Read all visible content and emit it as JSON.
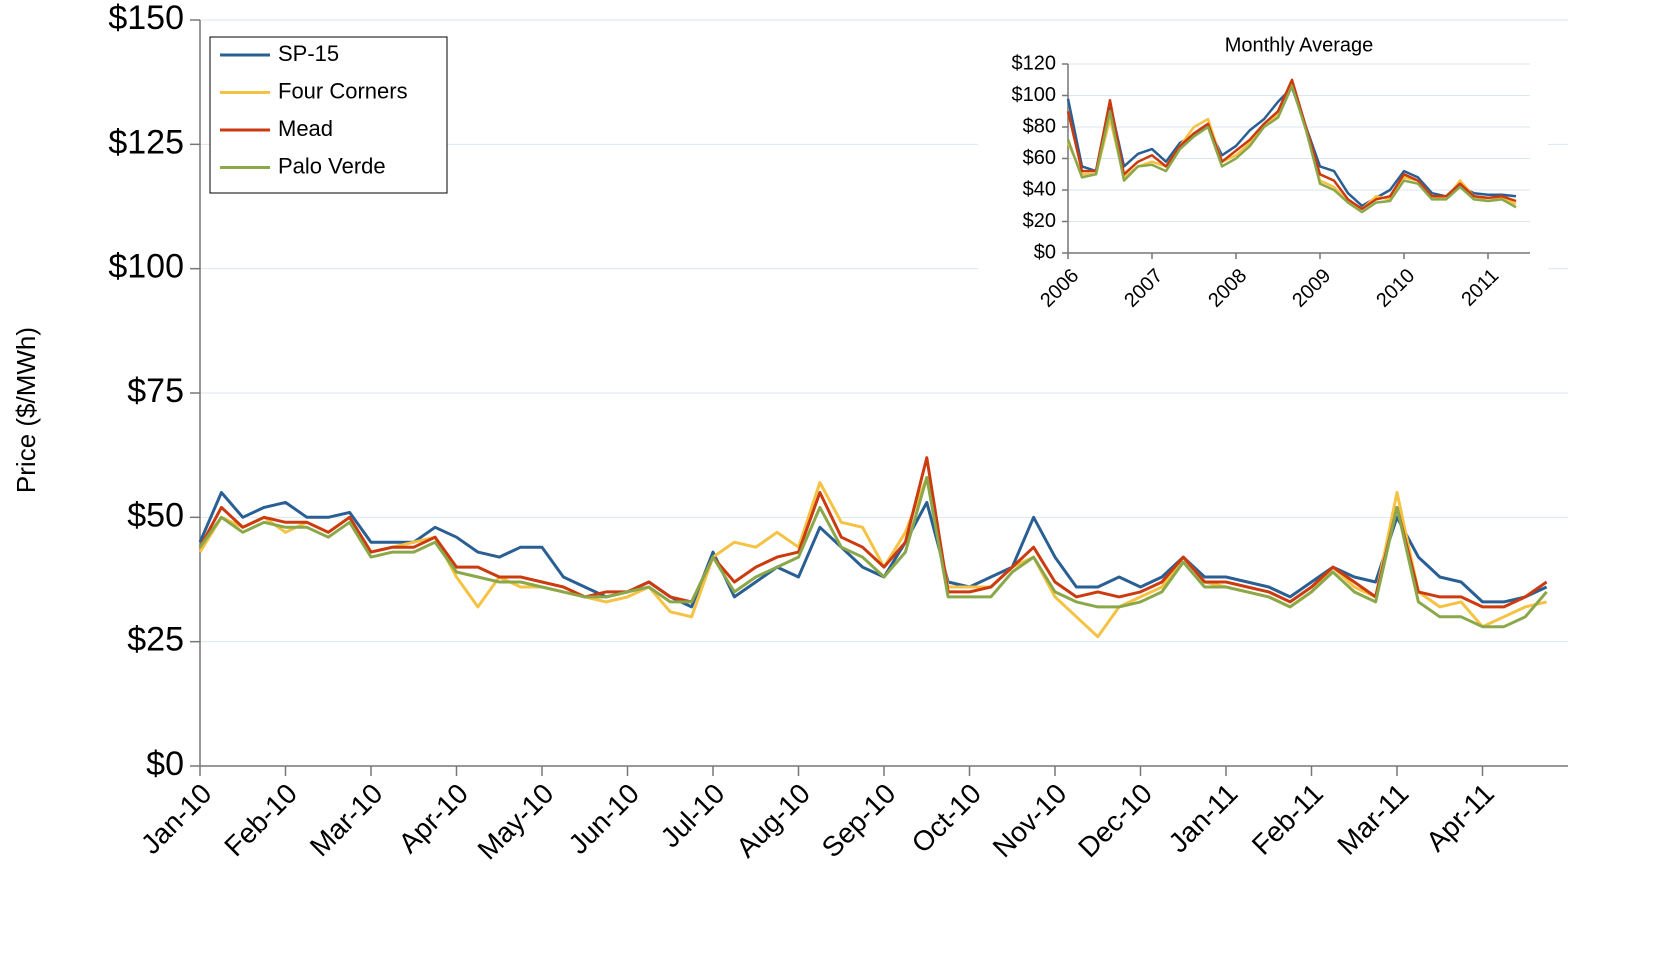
{
  "chart_data": [
    {
      "type": "line",
      "ylabel": "Price ($/MWh)",
      "categories": [
        "Jan-10",
        null,
        null,
        null,
        "Feb-10",
        null,
        null,
        null,
        "Mar-10",
        null,
        null,
        null,
        "Apr-10",
        null,
        null,
        null,
        "May-10",
        null,
        null,
        null,
        "Jun-10",
        null,
        null,
        null,
        "Jul-10",
        null,
        null,
        null,
        "Aug-10",
        null,
        null,
        null,
        "Sep-10",
        null,
        null,
        null,
        "Oct-10",
        null,
        null,
        null,
        "Nov-10",
        null,
        null,
        null,
        "Dec-10",
        null,
        null,
        null,
        "Jan-11",
        null,
        null,
        null,
        "Feb-11",
        null,
        null,
        null,
        "Mar-11",
        null,
        null,
        null,
        "Apr-11",
        null,
        null,
        null
      ],
      "ylim": [
        0,
        150
      ],
      "yticks": [
        {
          "value": 0,
          "label": "$0"
        },
        {
          "value": 25,
          "label": "$25"
        },
        {
          "value": 50,
          "label": "$50"
        },
        {
          "value": 75,
          "label": "$75"
        },
        {
          "value": 100,
          "label": "$100"
        },
        {
          "value": 125,
          "label": "$125"
        },
        {
          "value": 150,
          "label": "$150"
        }
      ],
      "grid": true,
      "legend": "top-left",
      "series": [
        {
          "name": "SP-15",
          "color": "#2a5f94",
          "values": [
            45,
            55,
            50,
            52,
            53,
            50,
            50,
            51,
            45,
            45,
            45,
            48,
            46,
            43,
            42,
            44,
            44,
            38,
            36,
            34,
            35,
            37,
            34,
            32,
            43,
            34,
            37,
            40,
            38,
            48,
            44,
            40,
            38,
            45,
            53,
            37,
            36,
            38,
            40,
            50,
            42,
            36,
            36,
            38,
            36,
            38,
            42,
            38,
            38,
            37,
            36,
            34,
            37,
            40,
            38,
            37,
            50,
            42,
            38,
            37,
            33,
            33,
            34,
            36
          ]
        },
        {
          "name": "Four Corners",
          "color": "#f5c243",
          "values": [
            43,
            50,
            48,
            50,
            47,
            49,
            47,
            50,
            43,
            44,
            45,
            46,
            38,
            32,
            38,
            36,
            36,
            35,
            34,
            33,
            34,
            36,
            31,
            30,
            42,
            45,
            44,
            47,
            44,
            57,
            49,
            48,
            40,
            47,
            58,
            36,
            36,
            36,
            40,
            42,
            34,
            30,
            26,
            32,
            34,
            36,
            42,
            37,
            36,
            35,
            34,
            32,
            35,
            40,
            36,
            34,
            55,
            35,
            32,
            33,
            28,
            30,
            32,
            33
          ]
        },
        {
          "name": "Mead",
          "color": "#cc3a10",
          "values": [
            44,
            52,
            48,
            50,
            49,
            49,
            47,
            50,
            43,
            44,
            44,
            46,
            40,
            40,
            38,
            38,
            37,
            36,
            34,
            35,
            35,
            37,
            34,
            33,
            42,
            37,
            40,
            42,
            43,
            55,
            46,
            44,
            40,
            45,
            62,
            35,
            35,
            36,
            40,
            44,
            37,
            34,
            35,
            34,
            35,
            37,
            42,
            37,
            37,
            36,
            35,
            33,
            36,
            40,
            37,
            34,
            52,
            35,
            34,
            34,
            32,
            32,
            34,
            37
          ]
        },
        {
          "name": "Palo Verde",
          "color": "#8aa84a",
          "values": [
            44,
            50,
            47,
            49,
            48,
            48,
            46,
            49,
            42,
            43,
            43,
            45,
            39,
            38,
            37,
            37,
            36,
            35,
            34,
            34,
            35,
            36,
            33,
            33,
            42,
            35,
            38,
            40,
            42,
            52,
            44,
            42,
            38,
            43,
            58,
            34,
            34,
            34,
            39,
            42,
            35,
            33,
            32,
            32,
            33,
            35,
            41,
            36,
            36,
            35,
            34,
            32,
            35,
            39,
            35,
            33,
            52,
            33,
            30,
            30,
            28,
            28,
            30,
            35
          ]
        }
      ]
    },
    {
      "type": "line",
      "title": "Monthly Average",
      "categories": [
        "2006",
        null,
        null,
        null,
        null,
        null,
        "2007",
        null,
        null,
        null,
        null,
        null,
        "2008",
        null,
        null,
        null,
        null,
        null,
        "2009",
        null,
        null,
        null,
        null,
        null,
        "2010",
        null,
        null,
        null,
        null,
        null,
        "2011",
        null,
        null
      ],
      "ylim": [
        0,
        120
      ],
      "yticks": [
        {
          "value": 0,
          "label": "$0"
        },
        {
          "value": 20,
          "label": "$20"
        },
        {
          "value": 40,
          "label": "$40"
        },
        {
          "value": 60,
          "label": "$60"
        },
        {
          "value": 80,
          "label": "$80"
        },
        {
          "value": 100,
          "label": "$100"
        },
        {
          "value": 120,
          "label": "$120"
        }
      ],
      "grid": true,
      "series": [
        {
          "color": "#2a5f94",
          "values": [
            98,
            55,
            52,
            95,
            55,
            63,
            66,
            58,
            70,
            75,
            80,
            62,
            68,
            78,
            85,
            96,
            105,
            80,
            55,
            52,
            38,
            30,
            35,
            40,
            52,
            48,
            38,
            36,
            42,
            38,
            37,
            37,
            36
          ]
        },
        {
          "color": "#f5c243",
          "values": [
            70,
            50,
            50,
            85,
            48,
            55,
            58,
            55,
            68,
            80,
            85,
            58,
            62,
            70,
            80,
            88,
            108,
            78,
            46,
            42,
            32,
            28,
            36,
            34,
            48,
            46,
            36,
            34,
            46,
            36,
            33,
            35,
            31
          ]
        },
        {
          "color": "#cc3a10",
          "values": [
            90,
            52,
            52,
            97,
            50,
            58,
            62,
            55,
            68,
            76,
            82,
            58,
            65,
            72,
            82,
            90,
            110,
            80,
            50,
            46,
            34,
            28,
            34,
            36,
            50,
            46,
            36,
            36,
            44,
            36,
            35,
            36,
            33
          ]
        },
        {
          "color": "#8aa84a",
          "values": [
            72,
            48,
            50,
            90,
            46,
            55,
            56,
            52,
            66,
            74,
            80,
            55,
            60,
            68,
            80,
            86,
            106,
            78,
            44,
            40,
            32,
            26,
            32,
            33,
            46,
            44,
            34,
            34,
            42,
            34,
            33,
            34,
            29
          ]
        }
      ]
    }
  ]
}
